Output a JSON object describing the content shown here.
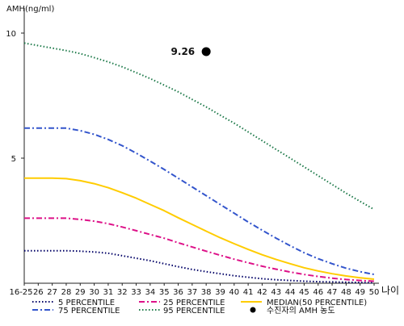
{
  "chart_data": {
    "type": "line",
    "ylabel": "AMH(ng/ml)",
    "xlabel": "나이",
    "ylim": [
      0,
      11
    ],
    "y_ticks": [
      10,
      5
    ],
    "categories": [
      "16-25",
      "26",
      "27",
      "28",
      "29",
      "30",
      "31",
      "32",
      "33",
      "34",
      "35",
      "36",
      "37",
      "38",
      "39",
      "40",
      "41",
      "42",
      "43",
      "44",
      "45",
      "46",
      "47",
      "48",
      "49",
      "50"
    ],
    "grid": false,
    "legend_position": "bottom",
    "series": [
      {
        "name": "5 PERCENTILE",
        "color": "#000066",
        "dash": "dot",
        "values": [
          1.3,
          1.3,
          1.3,
          1.3,
          1.28,
          1.25,
          1.2,
          1.1,
          1.0,
          0.9,
          0.78,
          0.66,
          0.55,
          0.46,
          0.38,
          0.3,
          0.24,
          0.18,
          0.14,
          0.11,
          0.08,
          0.06,
          0.05,
          0.04,
          0.03,
          0.02
        ]
      },
      {
        "name": "25 PERCENTILE",
        "color": "#dd1188",
        "dash": "dashdot",
        "values": [
          2.6,
          2.6,
          2.6,
          2.6,
          2.55,
          2.48,
          2.38,
          2.25,
          2.1,
          1.95,
          1.8,
          1.62,
          1.45,
          1.28,
          1.12,
          0.96,
          0.82,
          0.68,
          0.56,
          0.45,
          0.35,
          0.27,
          0.2,
          0.15,
          0.11,
          0.08
        ]
      },
      {
        "name": "MEDIAN(50 PERCENTILE)",
        "color": "#ffcc00",
        "dash": "solid",
        "values": [
          4.2,
          4.2,
          4.2,
          4.18,
          4.1,
          3.98,
          3.82,
          3.62,
          3.4,
          3.15,
          2.9,
          2.62,
          2.35,
          2.08,
          1.82,
          1.58,
          1.35,
          1.14,
          0.95,
          0.78,
          0.62,
          0.49,
          0.38,
          0.29,
          0.22,
          0.16
        ]
      },
      {
        "name": "75 PERCENTILE",
        "color": "#3355cc",
        "dash": "dashdot",
        "values": [
          6.2,
          6.2,
          6.2,
          6.2,
          6.1,
          5.95,
          5.75,
          5.5,
          5.2,
          4.88,
          4.55,
          4.2,
          3.85,
          3.5,
          3.15,
          2.8,
          2.45,
          2.12,
          1.8,
          1.5,
          1.22,
          0.98,
          0.78,
          0.6,
          0.46,
          0.35
        ]
      },
      {
        "name": "95 PERCENTILE",
        "color": "#1e7a4a",
        "dash": "dot",
        "values": [
          9.6,
          9.5,
          9.4,
          9.3,
          9.18,
          9.02,
          8.85,
          8.65,
          8.42,
          8.18,
          7.92,
          7.65,
          7.35,
          7.05,
          6.72,
          6.4,
          6.05,
          5.7,
          5.35,
          5.0,
          4.65,
          4.3,
          3.95,
          3.6,
          3.27,
          2.95
        ]
      }
    ],
    "patient": {
      "label": "수진자의 AMH 농도",
      "age": "38",
      "value": 9.26,
      "value_text": "9.26"
    }
  }
}
